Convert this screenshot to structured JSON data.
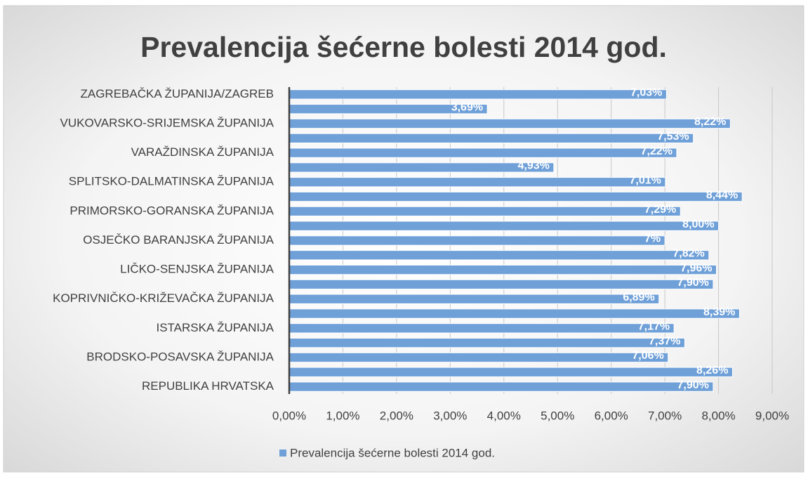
{
  "chart_data": {
    "type": "bar",
    "orientation": "horizontal",
    "title": "Prevalencija šećerne bolesti 2014 god.",
    "categories": [
      "ZAGREBAČKA ŽUPANIJA/ZAGREB",
      null,
      "VUKOVARSKO-SRIJEMSKA ŽUPANIJA",
      null,
      "VARAŽDINSKA ŽUPANIJA",
      null,
      "SPLITSKO-DALMATINSKA ŽUPANIJA",
      null,
      "PRIMORSKO-GORANSKA ŽUPANIJA",
      null,
      "OSJEČKO BARANJSKA ŽUPANIJA",
      null,
      "LIČKO-SENJSKA ŽUPANIJA",
      null,
      "KOPRIVNIČKO-KRIŽEVAČKA ŽUPANIJA",
      null,
      "ISTARSKA ŽUPANIJA",
      null,
      "BRODSKO-POSAVSKA ŽUPANIJA",
      null,
      "REPUBLIKA HRVATSKA"
    ],
    "series": [
      {
        "name": "Prevalencija šećerne bolesti 2014 god.",
        "color": "#6fa0d8",
        "values": [
          7.03,
          3.69,
          8.22,
          7.53,
          7.22,
          4.93,
          7.01,
          8.44,
          7.29,
          8.0,
          7,
          7.82,
          7.96,
          7.9,
          6.89,
          8.39,
          7.17,
          7.37,
          7.06,
          8.26,
          7.9
        ],
        "value_labels": [
          "7,03%",
          "3,69%",
          "8,22%",
          "7,53%",
          "7,22%",
          "4,93%",
          "7,01%",
          "8,44%",
          "7,29%",
          "8,00%",
          "7%",
          "7,82%",
          "7,96%",
          "7,90%",
          "6,89%",
          "8,39%",
          "7,17%",
          "7,37%",
          "7,06%",
          "8,26%",
          "7,90%"
        ]
      }
    ],
    "xlim": [
      0,
      9
    ],
    "xticks": [
      {
        "value": 0,
        "label": "0,00%"
      },
      {
        "value": 1,
        "label": "1,00%"
      },
      {
        "value": 2,
        "label": "2,00%"
      },
      {
        "value": 3,
        "label": "3,00%"
      },
      {
        "value": 4,
        "label": "4,00%"
      },
      {
        "value": 5,
        "label": "5,00%"
      },
      {
        "value": 6,
        "label": "6,00%"
      },
      {
        "value": 7,
        "label": "7,00%"
      },
      {
        "value": 8,
        "label": "8,00%"
      },
      {
        "value": 9,
        "label": "9,00%"
      }
    ],
    "grid": true,
    "legend": "bottom"
  }
}
